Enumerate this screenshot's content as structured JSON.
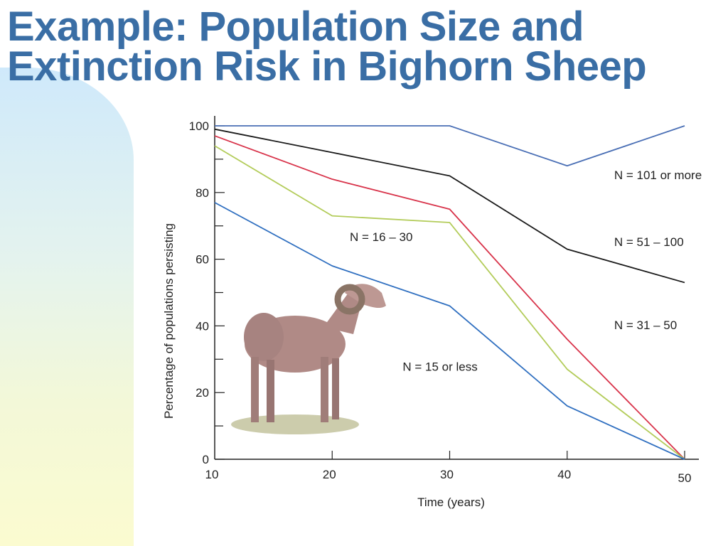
{
  "slide": {
    "title_line1": "Example: Population Size and",
    "title_line2": "Extinction Risk in Bighorn Sheep"
  },
  "colors": {
    "title": "#3a6ea5",
    "axis": "#222222"
  },
  "chart_data": {
    "type": "line",
    "xlabel": "Time (years)",
    "ylabel": "Percentage of populations persisting",
    "x": [
      10,
      20,
      30,
      40,
      50
    ],
    "x_ticks": [
      10,
      20,
      30,
      40,
      50
    ],
    "y_ticks": [
      0,
      20,
      40,
      60,
      80,
      100
    ],
    "xlim": [
      10,
      50
    ],
    "ylim": [
      0,
      100
    ],
    "grid": false,
    "legend": "none (inline line labels)",
    "series": [
      {
        "name": "N = 101 or more",
        "color": "#4a6fb5",
        "values": [
          100,
          100,
          100,
          88,
          100
        ]
      },
      {
        "name": "N = 51 – 100",
        "color": "#1a1a1a",
        "values": [
          99,
          92,
          85,
          63,
          53
        ]
      },
      {
        "name": "N = 31 – 50",
        "color": "#d8334a",
        "values": [
          97,
          84,
          75,
          36,
          0
        ]
      },
      {
        "name": "N = 16 – 30",
        "color": "#b3cc5a",
        "values": [
          94,
          73,
          71,
          27,
          0
        ]
      },
      {
        "name": "N = 15 or less",
        "color": "#2f6fc0",
        "values": [
          77,
          58,
          46,
          16,
          0
        ]
      }
    ],
    "annotations": [
      {
        "series": 0,
        "text": "N = 101 or more"
      },
      {
        "series": 1,
        "text": "N = 51 – 100"
      },
      {
        "series": 2,
        "text": "N = 31 – 50"
      },
      {
        "series": 3,
        "text": "N = 16 – 30"
      },
      {
        "series": 4,
        "text": "N = 15 or less"
      }
    ]
  }
}
